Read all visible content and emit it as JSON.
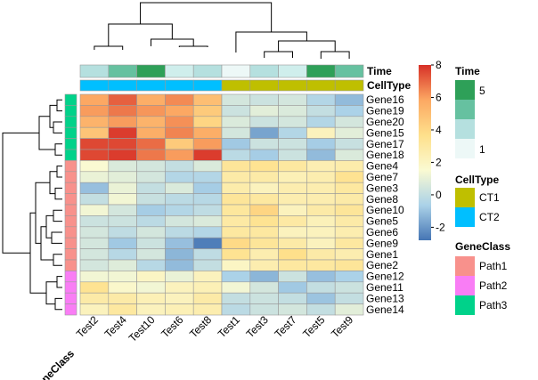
{
  "chart_data": {
    "type": "heatmap",
    "columns": [
      "Test2",
      "Test4",
      "Test10",
      "Test6",
      "Test8",
      "Test1",
      "Test3",
      "Test7",
      "Test5",
      "Test9"
    ],
    "rows": [
      "Gene16",
      "Gene19",
      "Gene20",
      "Gene15",
      "Gene17",
      "Gene18",
      "Gene4",
      "Gene7",
      "Gene3",
      "Gene8",
      "Gene10",
      "Gene5",
      "Gene6",
      "Gene9",
      "Gene1",
      "Gene2",
      "Gene12",
      "Gene11",
      "Gene13",
      "Gene14"
    ],
    "values": [
      [
        6.0,
        7.2,
        5.8,
        6.5,
        5.2,
        1.0,
        0.8,
        1.0,
        0.2,
        -0.5
      ],
      [
        6.2,
        6.8,
        6.3,
        6.0,
        4.8,
        0.8,
        1.4,
        1.2,
        0.6,
        0.0
      ],
      [
        5.6,
        6.2,
        5.6,
        6.4,
        4.4,
        1.2,
        0.8,
        1.0,
        0.2,
        1.0
      ],
      [
        5.0,
        7.8,
        5.8,
        6.6,
        5.8,
        1.0,
        -1.0,
        0.2,
        2.6,
        1.4
      ],
      [
        7.6,
        7.6,
        7.0,
        4.8,
        6.2,
        -0.2,
        0.8,
        0.8,
        -0.1,
        0.7
      ],
      [
        7.6,
        7.8,
        6.8,
        6.2,
        7.8,
        0.4,
        -0.1,
        0.8,
        -0.5,
        1.2
      ],
      [
        2.0,
        1.2,
        1.0,
        0.6,
        1.2,
        3.6,
        3.8,
        3.4,
        2.9,
        3.1
      ],
      [
        1.6,
        1.4,
        1.0,
        0.2,
        0.2,
        3.2,
        3.2,
        2.8,
        3.0,
        3.8
      ],
      [
        -0.4,
        1.6,
        0.6,
        1.2,
        -0.1,
        3.1,
        2.6,
        3.0,
        3.0,
        3.4
      ],
      [
        0.6,
        1.8,
        0.7,
        0.4,
        0.3,
        3.6,
        3.4,
        3.0,
        3.0,
        3.2
      ],
      [
        1.8,
        1.0,
        -0.1,
        0.2,
        0.5,
        3.5,
        4.4,
        2.6,
        3.2,
        3.6
      ],
      [
        0.8,
        0.8,
        0.4,
        1.0,
        1.2,
        3.3,
        3.8,
        3.3,
        2.7,
        3.2
      ],
      [
        1.0,
        0.5,
        1.0,
        0.4,
        0.2,
        3.4,
        3.4,
        2.6,
        2.6,
        3.0
      ],
      [
        1.0,
        -0.2,
        0.8,
        -0.4,
        -1.8,
        4.2,
        3.6,
        3.2,
        2.6,
        3.4
      ],
      [
        1.0,
        0.3,
        1.0,
        -0.6,
        0.5,
        3.8,
        3.0,
        4.0,
        3.2,
        3.0
      ],
      [
        1.0,
        1.3,
        0.3,
        -0.5,
        0.6,
        2.4,
        3.0,
        3.4,
        3.4,
        3.6
      ],
      [
        1.8,
        1.8,
        2.4,
        1.6,
        2.6,
        0.0,
        -0.6,
        0.8,
        -0.4,
        0.0
      ],
      [
        3.8,
        2.2,
        1.8,
        2.6,
        2.8,
        1.8,
        1.0,
        -0.2,
        0.6,
        0.8
      ],
      [
        3.2,
        3.2,
        2.8,
        2.6,
        3.2,
        0.6,
        0.8,
        0.6,
        -0.3,
        0.6
      ],
      [
        2.6,
        3.4,
        2.6,
        2.8,
        3.0,
        0.4,
        0.8,
        1.0,
        0.6,
        1.4
      ]
    ],
    "color_scale": {
      "breaks": [
        -2,
        0,
        2,
        4,
        6,
        8
      ],
      "tick_labels": [
        "-2",
        "0",
        "2",
        "4",
        "6",
        "8"
      ],
      "colors": [
        "#4575b4",
        "#abd2e8",
        "#fafad2",
        "#fee08b",
        "#fca863",
        "#d73027"
      ]
    },
    "column_annotations": {
      "Time": [
        3,
        4,
        5,
        2,
        3,
        1,
        3,
        2,
        5,
        4
      ],
      "CellType": [
        "CT2",
        "CT2",
        "CT2",
        "CT2",
        "CT2",
        "CT1",
        "CT1",
        "CT1",
        "CT1",
        "CT1"
      ]
    },
    "row_annotations": {
      "GeneClass": [
        "Path3",
        "Path3",
        "Path3",
        "Path3",
        "Path3",
        "Path3",
        "Path1",
        "Path1",
        "Path1",
        "Path1",
        "Path1",
        "Path1",
        "Path1",
        "Path1",
        "Path1",
        "Path1",
        "Path2",
        "Path2",
        "Path2",
        "Path2"
      ]
    },
    "annotation_labels": {
      "time": "Time",
      "celltype": "CellType",
      "geneclass": "GeneClass"
    },
    "legends": {
      "time": {
        "title": "Time",
        "ticks": [
          "5",
          "1"
        ],
        "colors": [
          "#2ea058",
          "#66c1a0",
          "#b5e0df",
          "#edf8f7"
        ]
      },
      "celltype": {
        "title": "CellType",
        "items": [
          {
            "label": "CT1",
            "color": "#bfbf00"
          },
          {
            "label": "CT2",
            "color": "#00bfff"
          }
        ]
      },
      "geneclass": {
        "title": "GeneClass",
        "items": [
          {
            "label": "Path1",
            "color": "#f8918c"
          },
          {
            "label": "Path2",
            "color": "#f97df5"
          },
          {
            "label": "Path3",
            "color": "#00d28a"
          }
        ]
      }
    },
    "time_colors": {
      "1": "#edf8f7",
      "2": "#cfeeec",
      "3": "#b5e0df",
      "4": "#66c1a0",
      "5": "#2ea058"
    },
    "celltype_colors": {
      "CT1": "#bfbf00",
      "CT2": "#00bfff"
    },
    "geneclass_colors": {
      "Path1": "#f8918c",
      "Path2": "#f97df5",
      "Path3": "#00d28a"
    }
  }
}
